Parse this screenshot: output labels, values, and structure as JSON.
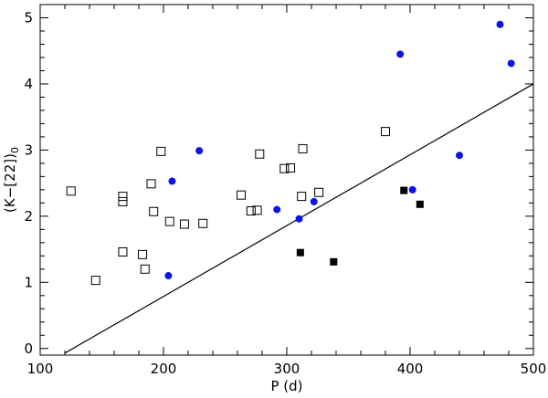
{
  "chart_data": {
    "type": "scatter",
    "title": "",
    "xlabel": "P (d)",
    "ylabel": "(K−[22])",
    "ylabel_subscript": "0",
    "xlim": [
      100,
      500
    ],
    "ylim": [
      -0.1,
      5.2
    ],
    "xticks": [
      100,
      200,
      300,
      400,
      500
    ],
    "yticks": [
      0,
      1,
      2,
      3,
      4,
      5
    ],
    "grid": false,
    "legend": "none",
    "colors": {
      "blue": "#0a14e6",
      "black": "#000000"
    },
    "series": [
      {
        "marker": "open-square",
        "color": "#000000",
        "points": [
          [
            125,
            2.38
          ],
          [
            145,
            1.03
          ],
          [
            167,
            2.22
          ],
          [
            167,
            2.3
          ],
          [
            167,
            1.46
          ],
          [
            183,
            1.42
          ],
          [
            185,
            1.2
          ],
          [
            190,
            2.49
          ],
          [
            192,
            2.07
          ],
          [
            198,
            2.98
          ],
          [
            205,
            1.92
          ],
          [
            217,
            1.88
          ],
          [
            232,
            1.89
          ],
          [
            263,
            2.32
          ],
          [
            271,
            2.08
          ],
          [
            276,
            2.09
          ],
          [
            278,
            2.94
          ],
          [
            298,
            2.72
          ],
          [
            303,
            2.73
          ],
          [
            312,
            2.3
          ],
          [
            313,
            3.02
          ],
          [
            326,
            2.36
          ],
          [
            380,
            3.28
          ]
        ]
      },
      {
        "marker": "filled-square",
        "color": "#000000",
        "points": [
          [
            311,
            1.45
          ],
          [
            338,
            1.31
          ],
          [
            395,
            2.39
          ],
          [
            408,
            2.18
          ]
        ]
      },
      {
        "marker": "filled-circle",
        "color": "#0a14e6",
        "points": [
          [
            204,
            1.1
          ],
          [
            207,
            2.53
          ],
          [
            229,
            2.99
          ],
          [
            292,
            2.1
          ],
          [
            310,
            1.96
          ],
          [
            322,
            2.22
          ],
          [
            392,
            4.45
          ],
          [
            402,
            2.4
          ],
          [
            440,
            2.92
          ],
          [
            473,
            4.9
          ],
          [
            482,
            4.31
          ]
        ]
      }
    ],
    "line": {
      "x": [
        120,
        500
      ],
      "y": [
        -0.07,
        4.0
      ]
    }
  }
}
